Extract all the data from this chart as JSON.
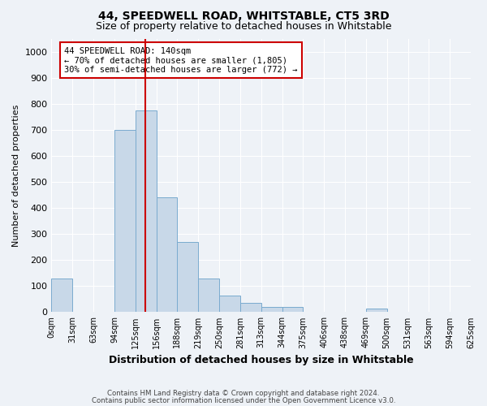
{
  "title": "44, SPEEDWELL ROAD, WHITSTABLE, CT5 3RD",
  "subtitle": "Size of property relative to detached houses in Whitstable",
  "xlabel": "Distribution of detached houses by size in Whitstable",
  "ylabel": "Number of detached properties",
  "bin_labels": [
    "0sqm",
    "31sqm",
    "63sqm",
    "94sqm",
    "125sqm",
    "156sqm",
    "188sqm",
    "219sqm",
    "250sqm",
    "281sqm",
    "313sqm",
    "344sqm",
    "375sqm",
    "406sqm",
    "438sqm",
    "469sqm",
    "500sqm",
    "531sqm",
    "563sqm",
    "594sqm",
    "625sqm"
  ],
  "bar_values": [
    130,
    0,
    0,
    700,
    775,
    440,
    270,
    130,
    65,
    35,
    20,
    20,
    0,
    0,
    0,
    15,
    0,
    0,
    0,
    0
  ],
  "bar_color": "#c8d8e8",
  "bar_edge_color": "#7aabcf",
  "vline_color": "#cc0000",
  "annotation_text": "44 SPEEDWELL ROAD: 140sqm\n← 70% of detached houses are smaller (1,805)\n30% of semi-detached houses are larger (772) →",
  "annotation_box_color": "#cc0000",
  "ylim": [
    0,
    1050
  ],
  "yticks": [
    0,
    100,
    200,
    300,
    400,
    500,
    600,
    700,
    800,
    900,
    1000
  ],
  "footer_line1": "Contains HM Land Registry data © Crown copyright and database right 2024.",
  "footer_line2": "Contains public sector information licensed under the Open Government Licence v3.0.",
  "background_color": "#eef2f7",
  "grid_color": "#ffffff"
}
